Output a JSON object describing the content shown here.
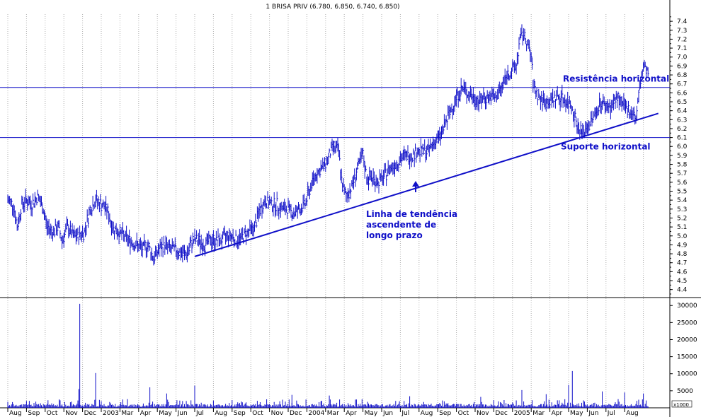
{
  "chart_data": {
    "type": "line",
    "title": "1 BRISA PRIV (6.780, 6.850, 6.740, 6.850)",
    "price_axis": {
      "ylim": [
        4.35,
        7.48
      ],
      "ticks": [
        "4.4",
        "4.5",
        "4.6",
        "4.7",
        "4.8",
        "4.9",
        "5.0",
        "5.1",
        "5.2",
        "5.3",
        "5.4",
        "5.5",
        "5.6",
        "5.7",
        "5.8",
        "5.9",
        "6.0",
        "6.1",
        "6.2",
        "6.3",
        "6.4",
        "6.5",
        "6.6",
        "6.7",
        "6.8",
        "6.9",
        "7.0",
        "7.1",
        "7.2",
        "7.3",
        "7.4"
      ]
    },
    "volume_axis": {
      "ylim": [
        0,
        31500
      ],
      "ticks": [
        "5000",
        "10000",
        "15000",
        "20000",
        "25000",
        "30000"
      ],
      "unit": "x1000"
    },
    "months": [
      "Aug",
      "Sep",
      "Oct",
      "Nov",
      "Dec",
      "2003",
      "Mar",
      "Apr",
      "May",
      "Jun",
      "Jul",
      "Aug",
      "Sep",
      "Oct",
      "Nov",
      "Dec",
      "2004",
      "Mar",
      "Apr",
      "May",
      "Jun",
      "Jul",
      "Aug",
      "Sep",
      "Oct",
      "Nov",
      "Dec",
      "2005",
      "Mar",
      "Apr",
      "May",
      "Jun",
      "Jul",
      "Aug"
    ],
    "price_path": [
      [
        0,
        5.4
      ],
      [
        0.3,
        5.35
      ],
      [
        0.5,
        5.1
      ],
      [
        0.75,
        5.35
      ],
      [
        1,
        5.4
      ],
      [
        1.3,
        5.35
      ],
      [
        1.6,
        5.45
      ],
      [
        1.9,
        5.3
      ],
      [
        2.1,
        5.1
      ],
      [
        2.4,
        5.05
      ],
      [
        2.7,
        5.1
      ],
      [
        2.9,
        4.95
      ],
      [
        3.2,
        5.1
      ],
      [
        3.5,
        5.0
      ],
      [
        3.8,
        5.0
      ],
      [
        4.1,
        5.05
      ],
      [
        4.4,
        5.3
      ],
      [
        4.7,
        5.4
      ],
      [
        5.0,
        5.35
      ],
      [
        5.3,
        5.3
      ],
      [
        5.6,
        5.1
      ],
      [
        5.9,
        5.05
      ],
      [
        6.2,
        5.0
      ],
      [
        6.5,
        4.95
      ],
      [
        6.9,
        4.9
      ],
      [
        7.2,
        4.85
      ],
      [
        7.5,
        4.9
      ],
      [
        7.8,
        4.75
      ],
      [
        8.1,
        4.85
      ],
      [
        8.4,
        4.9
      ],
      [
        8.7,
        4.85
      ],
      [
        9.0,
        4.85
      ],
      [
        9.3,
        4.8
      ],
      [
        9.6,
        4.8
      ],
      [
        9.9,
        4.95
      ],
      [
        10.2,
        4.95
      ],
      [
        10.5,
        4.9
      ],
      [
        10.8,
        4.95
      ],
      [
        11.1,
        4.95
      ],
      [
        11.4,
        4.95
      ],
      [
        11.7,
        5.0
      ],
      [
        12.0,
        5.0
      ],
      [
        12.3,
        4.95
      ],
      [
        12.6,
        5.0
      ],
      [
        12.9,
        5.05
      ],
      [
        13.2,
        5.1
      ],
      [
        13.5,
        5.3
      ],
      [
        13.8,
        5.4
      ],
      [
        14.1,
        5.35
      ],
      [
        14.4,
        5.35
      ],
      [
        14.7,
        5.3
      ],
      [
        15.0,
        5.3
      ],
      [
        15.3,
        5.25
      ],
      [
        15.6,
        5.3
      ],
      [
        15.9,
        5.35
      ],
      [
        16.2,
        5.55
      ],
      [
        16.5,
        5.7
      ],
      [
        16.8,
        5.75
      ],
      [
        17.1,
        5.85
      ],
      [
        17.4,
        6.0
      ],
      [
        17.7,
        5.95
      ],
      [
        17.9,
        5.55
      ],
      [
        18.1,
        5.45
      ],
      [
        18.4,
        5.55
      ],
      [
        18.7,
        5.75
      ],
      [
        19.0,
        5.9
      ],
      [
        19.2,
        5.65
      ],
      [
        19.5,
        5.65
      ],
      [
        19.8,
        5.6
      ],
      [
        20.1,
        5.65
      ],
      [
        20.4,
        5.75
      ],
      [
        20.7,
        5.8
      ],
      [
        21.0,
        5.85
      ],
      [
        21.3,
        5.9
      ],
      [
        21.6,
        5.9
      ],
      [
        21.9,
        5.95
      ],
      [
        22.2,
        5.95
      ],
      [
        22.5,
        5.95
      ],
      [
        22.8,
        6.05
      ],
      [
        23.1,
        6.1
      ],
      [
        23.4,
        6.25
      ],
      [
        23.7,
        6.4
      ],
      [
        24.0,
        6.55
      ],
      [
        24.3,
        6.65
      ],
      [
        24.6,
        6.6
      ],
      [
        24.9,
        6.55
      ],
      [
        25.2,
        6.5
      ],
      [
        25.5,
        6.55
      ],
      [
        25.8,
        6.55
      ],
      [
        26.1,
        6.55
      ],
      [
        26.4,
        6.65
      ],
      [
        26.7,
        6.8
      ],
      [
        27.0,
        6.85
      ],
      [
        27.2,
        6.9
      ],
      [
        27.4,
        7.2
      ],
      [
        27.6,
        7.25
      ],
      [
        27.8,
        7.15
      ],
      [
        28.0,
        7.0
      ],
      [
        28.1,
        6.7
      ],
      [
        28.4,
        6.55
      ],
      [
        28.7,
        6.5
      ],
      [
        29.0,
        6.5
      ],
      [
        29.3,
        6.55
      ],
      [
        29.6,
        6.55
      ],
      [
        29.9,
        6.5
      ],
      [
        30.2,
        6.45
      ],
      [
        30.5,
        6.2
      ],
      [
        30.8,
        6.15
      ],
      [
        31.1,
        6.25
      ],
      [
        31.4,
        6.35
      ],
      [
        31.7,
        6.5
      ],
      [
        32.0,
        6.45
      ],
      [
        32.3,
        6.45
      ],
      [
        32.6,
        6.55
      ],
      [
        32.9,
        6.45
      ],
      [
        33.2,
        6.4
      ],
      [
        33.4,
        6.4
      ],
      [
        33.6,
        6.3
      ],
      [
        33.8,
        6.65
      ],
      [
        34.0,
        6.9
      ],
      [
        34.15,
        6.85
      ],
      [
        34.3,
        6.8
      ]
    ],
    "volume_baseline": 300,
    "volume_spikes": [
      [
        3.85,
        30500
      ],
      [
        4.7,
        10200
      ],
      [
        3.8,
        5500
      ],
      [
        7.6,
        6000
      ],
      [
        10.0,
        6500
      ],
      [
        27.5,
        5200
      ],
      [
        30.2,
        10800
      ],
      [
        30.0,
        6700
      ],
      [
        31.8,
        4800
      ],
      [
        8.5,
        4200
      ],
      [
        15.2,
        3800
      ],
      [
        17.2,
        3600
      ],
      [
        21.5,
        3400
      ],
      [
        25.3,
        3200
      ],
      [
        28.8,
        4000
      ],
      [
        33.0,
        4500
      ],
      [
        34.0,
        4200
      ]
    ],
    "annotations": {
      "resistance_label": "Resistência horizontal",
      "resistance_value": 6.66,
      "support_label": "Suporte horizontal",
      "support_value": 6.1,
      "trend_label": [
        "Linha de tendência",
        "ascendente de",
        "longo prazo"
      ],
      "trend_line": [
        [
          10.0,
          4.77
        ],
        [
          34.8,
          6.37
        ]
      ]
    }
  }
}
